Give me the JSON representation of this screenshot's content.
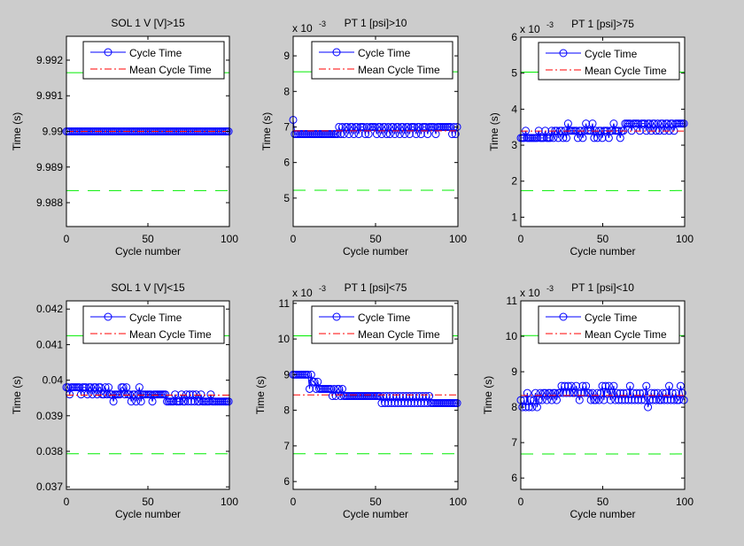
{
  "figure": {
    "background": "#cccccc"
  },
  "colors": {
    "cycle_time": "#0000ff",
    "mean": "#ff0000",
    "limits": "#00ee00",
    "axes_bg": "#ffffff"
  },
  "legend": {
    "entries": [
      "Cycle Time",
      "Mean Cycle Time"
    ],
    "placement": "top-right"
  },
  "chart_data": [
    {
      "type": "line",
      "title": "SOL 1 V [V]>15",
      "xlabel": "Cycle number",
      "ylabel": "Time (s)",
      "y_multiplier": "",
      "xlim": [
        0,
        101
      ],
      "xticks": [
        0,
        50,
        100
      ],
      "xtick_labels": [
        "0",
        "50",
        "100"
      ],
      "ylim": [
        9.98733,
        9.99267
      ],
      "yticks": [
        9.988,
        9.989,
        9.99,
        9.991,
        9.992
      ],
      "ytick_labels": [
        "9.988",
        "9.989",
        "9.99",
        "9.991",
        "9.992"
      ],
      "mean": 9.99,
      "upper_limit": 9.99165,
      "lower_limit": 9.98834,
      "series": [
        {
          "name": "Cycle Time",
          "values": [
            9.99,
            9.99,
            9.99,
            9.99,
            9.99,
            9.99,
            9.99,
            9.99,
            9.99,
            9.99,
            9.99,
            9.99,
            9.99,
            9.99,
            9.99,
            9.99,
            9.99,
            9.99,
            9.99,
            9.99,
            9.99,
            9.99,
            9.99,
            9.99,
            9.99,
            9.99,
            9.99,
            9.99,
            9.99,
            9.99,
            9.99,
            9.99,
            9.99,
            9.99,
            9.99,
            9.99,
            9.99,
            9.99,
            9.99,
            9.99,
            9.99,
            9.99,
            9.99,
            9.99,
            9.99,
            9.99,
            9.99,
            9.99,
            9.99,
            9.99,
            9.99,
            9.99,
            9.99,
            9.99,
            9.99,
            9.99,
            9.99,
            9.99,
            9.99,
            9.99,
            9.99,
            9.99,
            9.99,
            9.99,
            9.99,
            9.99,
            9.99,
            9.99,
            9.99,
            9.99,
            9.99,
            9.99,
            9.99,
            9.99,
            9.99,
            9.99,
            9.99,
            9.99,
            9.99,
            9.99,
            9.99,
            9.99,
            9.99,
            9.99,
            9.99,
            9.99,
            9.99,
            9.99,
            9.99,
            9.99,
            9.99,
            9.99,
            9.99,
            9.99,
            9.99,
            9.99,
            9.99,
            9.99,
            9.99,
            9.99,
            9.99
          ]
        }
      ]
    },
    {
      "type": "line",
      "title": "PT 1 [psi]>10",
      "xlabel": "Cycle number",
      "ylabel": "Time (s)",
      "y_multiplier": "x 10",
      "y_multiplier_exp": "-3",
      "xlim": [
        0,
        101
      ],
      "xticks": [
        0,
        50,
        100
      ],
      "xtick_labels": [
        "0",
        "50",
        "100"
      ],
      "ylim": [
        4.2,
        9.55
      ],
      "yticks": [
        5,
        6,
        7,
        8,
        9
      ],
      "ytick_labels": [
        "5",
        "6",
        "7",
        "8",
        "9"
      ],
      "mean": 6.89,
      "upper_limit": 8.55,
      "lower_limit": 5.22,
      "series": [
        {
          "name": "Cycle Time",
          "values": [
            7.2,
            6.8,
            6.8,
            6.8,
            6.8,
            6.8,
            6.8,
            6.8,
            6.8,
            6.8,
            6.8,
            6.8,
            6.8,
            6.8,
            6.8,
            6.8,
            6.8,
            6.8,
            6.8,
            6.8,
            6.8,
            6.8,
            6.8,
            6.8,
            6.8,
            6.8,
            6.8,
            6.8,
            7.0,
            6.8,
            7.0,
            6.8,
            7.0,
            7.0,
            6.8,
            7.0,
            7.0,
            6.8,
            7.0,
            7.0,
            6.8,
            7.0,
            7.0,
            7.0,
            6.8,
            7.0,
            6.8,
            7.0,
            7.0,
            7.0,
            7.0,
            6.8,
            7.0,
            7.0,
            6.8,
            7.0,
            7.0,
            6.8,
            7.0,
            6.8,
            7.0,
            7.0,
            6.8,
            7.0,
            7.0,
            6.8,
            7.0,
            7.0,
            6.8,
            7.0,
            7.0,
            6.8,
            7.0,
            7.0,
            7.0,
            6.8,
            7.0,
            7.0,
            6.8,
            7.0,
            7.0,
            7.0,
            6.8,
            7.0,
            7.0,
            7.0,
            7.0,
            6.8,
            7.0,
            7.0,
            7.0,
            7.0,
            7.0,
            7.0,
            7.0,
            7.0,
            7.0,
            6.8,
            7.0,
            6.8,
            7.0
          ]
        }
      ]
    },
    {
      "type": "line",
      "title": "PT 1 [psi]>75",
      "xlabel": "Cycle number",
      "ylabel": "Time (s)",
      "y_multiplier": "x 10",
      "y_multiplier_exp": "-3",
      "xlim": [
        0,
        101
      ],
      "xticks": [
        0,
        50,
        100
      ],
      "xtick_labels": [
        "0",
        "50",
        "100"
      ],
      "ylim": [
        0.74,
        6
      ],
      "yticks": [
        1,
        2,
        3,
        4,
        5,
        6
      ],
      "ytick_labels": [
        "1",
        "2",
        "3",
        "4",
        "5",
        "6"
      ],
      "mean": 3.39,
      "upper_limit": 5.03,
      "lower_limit": 1.74,
      "series": [
        {
          "name": "Cycle Time",
          "values": [
            3.2,
            3.2,
            3.2,
            3.4,
            3.2,
            3.2,
            3.2,
            3.2,
            3.2,
            3.2,
            3.2,
            3.4,
            3.2,
            3.2,
            3.2,
            3.4,
            3.2,
            3.2,
            3.2,
            3.4,
            3.2,
            3.4,
            3.4,
            3.2,
            3.4,
            3.4,
            3.2,
            3.4,
            3.2,
            3.6,
            3.4,
            3.4,
            3.4,
            3.4,
            3.4,
            3.2,
            3.4,
            3.4,
            3.2,
            3.4,
            3.6,
            3.4,
            3.4,
            3.4,
            3.6,
            3.2,
            3.4,
            3.2,
            3.4,
            3.4,
            3.2,
            3.4,
            3.4,
            3.4,
            3.2,
            3.4,
            3.4,
            3.6,
            3.4,
            3.4,
            3.4,
            3.2,
            3.4,
            3.4,
            3.6,
            3.6,
            3.6,
            3.6,
            3.4,
            3.6,
            3.6,
            3.6,
            3.6,
            3.4,
            3.6,
            3.6,
            3.6,
            3.4,
            3.6,
            3.6,
            3.4,
            3.6,
            3.6,
            3.4,
            3.6,
            3.4,
            3.6,
            3.6,
            3.4,
            3.6,
            3.6,
            3.4,
            3.6,
            3.6,
            3.4,
            3.6,
            3.6,
            3.6,
            3.6,
            3.6,
            3.6
          ]
        }
      ]
    },
    {
      "type": "line",
      "title": "SOL 1 V [V]<15",
      "xlabel": "Cycle number",
      "ylabel": "Time (s)",
      "y_multiplier": "",
      "xlim": [
        0,
        101
      ],
      "xticks": [
        0,
        50,
        100
      ],
      "xtick_labels": [
        "0",
        "50",
        "100"
      ],
      "ylim": [
        0.03693,
        0.04223
      ],
      "yticks": [
        0.037,
        0.038,
        0.039,
        0.04,
        0.041,
        0.042
      ],
      "ytick_labels": [
        "0.037",
        "0.038",
        "0.039",
        "0.04",
        "0.041",
        "0.042"
      ],
      "mean": 0.03958,
      "upper_limit": 0.04125,
      "lower_limit": 0.03793,
      "series": [
        {
          "name": "Cycle Time",
          "values": [
            0.0398,
            0.0398,
            0.0396,
            0.0398,
            0.0398,
            0.0398,
            0.0398,
            0.0398,
            0.0398,
            0.0396,
            0.0398,
            0.0398,
            0.0398,
            0.0396,
            0.0398,
            0.0398,
            0.0396,
            0.0398,
            0.0398,
            0.0396,
            0.0398,
            0.0398,
            0.0396,
            0.0396,
            0.0398,
            0.0396,
            0.0398,
            0.0396,
            0.0396,
            0.0394,
            0.0396,
            0.0396,
            0.0396,
            0.0396,
            0.0398,
            0.0398,
            0.0396,
            0.0398,
            0.0396,
            0.0396,
            0.0394,
            0.0396,
            0.0396,
            0.0394,
            0.0396,
            0.0398,
            0.0394,
            0.0396,
            0.0396,
            0.0396,
            0.0396,
            0.0396,
            0.0396,
            0.0394,
            0.0396,
            0.0396,
            0.0396,
            0.0396,
            0.0396,
            0.0396,
            0.0396,
            0.0396,
            0.0394,
            0.0394,
            0.0394,
            0.0394,
            0.0394,
            0.0396,
            0.0394,
            0.0394,
            0.0394,
            0.0396,
            0.0394,
            0.0394,
            0.0396,
            0.0394,
            0.0396,
            0.0394,
            0.0396,
            0.0394,
            0.0396,
            0.0394,
            0.0394,
            0.0396,
            0.0394,
            0.0394,
            0.0394,
            0.0394,
            0.0394,
            0.0396,
            0.0394,
            0.0394,
            0.0394,
            0.0394,
            0.0394,
            0.0394,
            0.0394,
            0.0394,
            0.0394,
            0.0394,
            0.0394
          ]
        }
      ]
    },
    {
      "type": "line",
      "title": "PT 1 [psi]<75",
      "xlabel": "Cycle number",
      "ylabel": "Time (s)",
      "y_multiplier": "x 10",
      "y_multiplier_exp": "-3",
      "xlim": [
        0,
        101
      ],
      "xticks": [
        0,
        50,
        100
      ],
      "xtick_labels": [
        "0",
        "50",
        "100"
      ],
      "ylim": [
        5.78,
        11.07
      ],
      "yticks": [
        6,
        7,
        8,
        9,
        10,
        11
      ],
      "ytick_labels": [
        "6",
        "7",
        "8",
        "9",
        "10",
        "11"
      ],
      "mean": 8.43,
      "upper_limit": 10.09,
      "lower_limit": 6.78,
      "series": [
        {
          "name": "Cycle Time",
          "values": [
            9.0,
            9.0,
            9.0,
            9.0,
            9.0,
            9.0,
            9.0,
            9.0,
            9.0,
            9.0,
            8.6,
            9.0,
            8.8,
            8.8,
            8.6,
            8.8,
            8.6,
            8.6,
            8.6,
            8.6,
            8.6,
            8.6,
            8.6,
            8.6,
            8.4,
            8.6,
            8.4,
            8.6,
            8.6,
            8.4,
            8.6,
            8.4,
            8.4,
            8.4,
            8.4,
            8.4,
            8.4,
            8.4,
            8.4,
            8.4,
            8.4,
            8.4,
            8.4,
            8.4,
            8.4,
            8.4,
            8.4,
            8.4,
            8.4,
            8.4,
            8.4,
            8.4,
            8.4,
            8.4,
            8.2,
            8.4,
            8.2,
            8.4,
            8.2,
            8.4,
            8.2,
            8.4,
            8.2,
            8.4,
            8.2,
            8.4,
            8.2,
            8.4,
            8.2,
            8.4,
            8.2,
            8.4,
            8.2,
            8.4,
            8.2,
            8.4,
            8.2,
            8.4,
            8.2,
            8.4,
            8.2,
            8.4,
            8.2,
            8.4,
            8.2,
            8.2,
            8.2,
            8.2,
            8.2,
            8.2,
            8.2,
            8.2,
            8.2,
            8.2,
            8.2,
            8.2,
            8.2,
            8.2,
            8.2,
            8.2,
            8.2
          ]
        }
      ]
    },
    {
      "type": "line",
      "title": "PT 1 [psi]<10",
      "xlabel": "Cycle number",
      "ylabel": "Time (s)",
      "y_multiplier": "x 10",
      "y_multiplier_exp": "-3",
      "xlim": [
        0,
        101
      ],
      "xticks": [
        0,
        50,
        100
      ],
      "xtick_labels": [
        "0",
        "50",
        "100"
      ],
      "ylim": [
        5.68,
        11
      ],
      "yticks": [
        6,
        7,
        8,
        9,
        10,
        11
      ],
      "ytick_labels": [
        "6",
        "7",
        "8",
        "9",
        "10",
        "11"
      ],
      "mean": 8.33,
      "upper_limit": 10.02,
      "lower_limit": 6.68,
      "series": [
        {
          "name": "Cycle Time",
          "values": [
            8.2,
            8.0,
            8.2,
            8.0,
            8.4,
            8.0,
            8.2,
            8.0,
            8.2,
            8.4,
            8.0,
            8.2,
            8.4,
            8.2,
            8.4,
            8.4,
            8.2,
            8.4,
            8.4,
            8.2,
            8.4,
            8.4,
            8.2,
            8.4,
            8.4,
            8.6,
            8.4,
            8.6,
            8.4,
            8.6,
            8.4,
            8.6,
            8.4,
            8.4,
            8.6,
            8.4,
            8.2,
            8.4,
            8.6,
            8.4,
            8.6,
            8.4,
            8.4,
            8.2,
            8.4,
            8.2,
            8.2,
            8.4,
            8.2,
            8.4,
            8.6,
            8.2,
            8.6,
            8.4,
            8.6,
            8.2,
            8.4,
            8.6,
            8.2,
            8.4,
            8.2,
            8.4,
            8.2,
            8.4,
            8.2,
            8.4,
            8.2,
            8.6,
            8.2,
            8.4,
            8.2,
            8.4,
            8.2,
            8.4,
            8.2,
            8.4,
            8.2,
            8.6,
            8.0,
            8.2,
            8.4,
            8.2,
            8.4,
            8.2,
            8.4,
            8.2,
            8.2,
            8.4,
            8.2,
            8.4,
            8.2,
            8.6,
            8.2,
            8.4,
            8.2,
            8.4,
            8.2,
            8.2,
            8.6,
            8.4,
            8.2
          ]
        }
      ]
    }
  ]
}
